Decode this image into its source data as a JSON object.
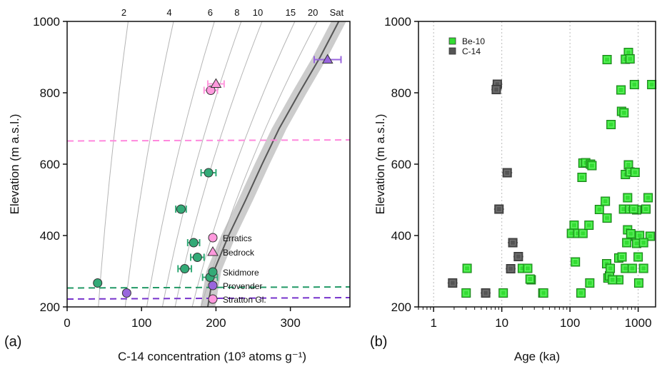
{
  "chart_data": [
    {
      "panel_label": "(a)",
      "type": "scatter",
      "xlabel": "C-14 concentration (10³ atoms g⁻¹)",
      "ylabel": "Elevation (m a.s.l.)",
      "xlim": [
        0,
        380
      ],
      "ylim": [
        200,
        1000
      ],
      "xticks": [
        0,
        100,
        200,
        300
      ],
      "yticks": [
        200,
        400,
        600,
        800,
        1000
      ],
      "isochrons": {
        "labels": [
          "2",
          "4",
          "6",
          "8",
          "10",
          "15",
          "20",
          "Sat"
        ],
        "x_at_200": [
          42,
          78,
          107,
          128,
          145,
          168,
          180,
          190
        ],
        "x_at_1000": [
          82,
          143,
          198,
          234,
          262,
          306,
          336,
          365
        ]
      },
      "saturation_band": {
        "center": [
          [
            189,
            200
          ],
          [
            197,
            300
          ],
          [
            217,
            400
          ],
          [
            240,
            500
          ],
          [
            262,
            600
          ],
          [
            285,
            700
          ],
          [
            312,
            800
          ],
          [
            340,
            900
          ],
          [
            365,
            1000
          ]
        ],
        "half_width": 10
      },
      "reference_lines": [
        {
          "color": "#ff88dd",
          "y": [
            665,
            668
          ]
        },
        {
          "color": "#229966",
          "y": [
            253,
            256
          ]
        },
        {
          "color": "#7733cc",
          "y": [
            222,
            226
          ]
        }
      ],
      "points": [
        {
          "group": "Stratton Gl.",
          "shape": "circle",
          "x": 193,
          "y": 807,
          "xerr": 9
        },
        {
          "group": "Stratton Gl.",
          "shape": "triangle",
          "x": 200,
          "y": 825,
          "xerr": 11
        },
        {
          "group": "Provender",
          "shape": "triangle",
          "x": 350,
          "y": 893,
          "xerr": 18
        },
        {
          "group": "Skidmore",
          "shape": "circle",
          "x": 190,
          "y": 576,
          "xerr": 10
        },
        {
          "group": "Skidmore",
          "shape": "circle",
          "x": 153,
          "y": 474,
          "xerr": 7
        },
        {
          "group": "Skidmore",
          "shape": "circle",
          "x": 170,
          "y": 380,
          "xerr": 8
        },
        {
          "group": "Skidmore",
          "shape": "circle",
          "x": 175,
          "y": 339,
          "xerr": 9
        },
        {
          "group": "Skidmore",
          "shape": "circle",
          "x": 158,
          "y": 307,
          "xerr": 9
        },
        {
          "group": "Skidmore",
          "shape": "circle",
          "x": 192,
          "y": 283,
          "xerr": 10
        },
        {
          "group": "Skidmore",
          "shape": "circle",
          "x": 41,
          "y": 267,
          "xerr": 0
        },
        {
          "group": "Provender",
          "shape": "circle",
          "x": 80,
          "y": 239,
          "xerr": 0
        }
      ],
      "legend": [
        {
          "label": "Erratics",
          "shape": "circle",
          "color": "#ff99dd"
        },
        {
          "label": "Bedrock",
          "shape": "triangle",
          "color": "#ff99dd"
        },
        {
          "label": "Skidmore",
          "shape": "circle",
          "color": "#33aa77"
        },
        {
          "label": "Provender",
          "shape": "circle",
          "color": "#9966dd"
        },
        {
          "label": "Stratton Gl.",
          "shape": "circle",
          "color": "#ff99dd"
        }
      ],
      "colors": {
        "Skidmore": "#33aa77",
        "Provender": "#9966dd",
        "Stratton Gl.": "#ff99dd",
        "isochron": "#b5b5b5",
        "saturation": "#555555"
      }
    },
    {
      "panel_label": "(b)",
      "type": "scatter",
      "xscale": "log",
      "xlabel": "Age (ka)",
      "ylabel": "Elevation (m a.s.l.)",
      "xlim": [
        0.6,
        1800
      ],
      "ylim": [
        200,
        1000
      ],
      "xticks": [
        1,
        10,
        100,
        1000
      ],
      "xtick_labels": [
        "1",
        "10",
        "100",
        "1000"
      ],
      "yticks": [
        200,
        400,
        600,
        800,
        1000
      ],
      "yticklabels": [
        "200",
        "400",
        "600",
        "800",
        "1000"
      ],
      "grid": "vertical dotted at 1, 10, 100, 1000",
      "legend": [
        {
          "label": "Be-10",
          "color": "#33dd33"
        },
        {
          "label": "C-14",
          "color": "#555555"
        }
      ],
      "series": [
        {
          "name": "C-14",
          "color": "#555555",
          "points": [
            [
              8.6,
              824
            ],
            [
              8.3,
              809
            ],
            [
              12,
              576
            ],
            [
              9.1,
              474
            ],
            [
              14.5,
              380
            ],
            [
              17.5,
              341
            ],
            [
              13.5,
              307
            ],
            [
              1.9,
              267
            ],
            [
              5.8,
              239
            ]
          ]
        },
        {
          "name": "Be-10",
          "color": "#33dd33",
          "points": [
            [
              3.1,
              308
            ],
            [
              3,
              239
            ],
            [
              10.5,
              239
            ],
            [
              20,
              308
            ],
            [
              24,
              308
            ],
            [
              27,
              276
            ],
            [
              26,
              278
            ],
            [
              40,
              239
            ],
            [
              41,
              239
            ],
            [
              115,
              429
            ],
            [
              105,
              406
            ],
            [
              130,
              406
            ],
            [
              155,
              406
            ],
            [
              190,
              429
            ],
            [
              120,
              326
            ],
            [
              195,
              267
            ],
            [
              145,
              239
            ],
            [
              155,
              603
            ],
            [
              170,
              604
            ],
            [
              200,
              600
            ],
            [
              210,
              596
            ],
            [
              150,
              563
            ],
            [
              270,
              473
            ],
            [
              330,
              496
            ],
            [
              350,
              449
            ],
            [
              345,
              321
            ],
            [
              360,
              281
            ],
            [
              380,
              287
            ],
            [
              390,
              308
            ],
            [
              400,
              711
            ],
            [
              350,
              893
            ],
            [
              560,
              808
            ],
            [
              570,
              748
            ],
            [
              620,
              744
            ],
            [
              650,
              571
            ],
            [
              720,
              598
            ],
            [
              760,
              578
            ],
            [
              900,
              577
            ],
            [
              700,
              506
            ],
            [
              950,
              472
            ],
            [
              1400,
              506
            ],
            [
              610,
              474
            ],
            [
              750,
              474
            ],
            [
              860,
              474
            ],
            [
              1300,
              474
            ],
            [
              700,
              416
            ],
            [
              820,
              399
            ],
            [
              920,
              398
            ],
            [
              1050,
              400
            ],
            [
              1500,
              398
            ],
            [
              520,
              337
            ],
            [
              580,
              340
            ],
            [
              680,
              380
            ],
            [
              780,
              405
            ],
            [
              950,
              378
            ],
            [
              1200,
              380
            ],
            [
              650,
              308
            ],
            [
              820,
              308
            ],
            [
              1000,
              340
            ],
            [
              1200,
              308
            ],
            [
              520,
              276
            ],
            [
              420,
              276
            ],
            [
              1020,
              267
            ],
            [
              720,
              913
            ],
            [
              650,
              894
            ],
            [
              760,
              895
            ],
            [
              880,
              823
            ],
            [
              1580,
              823
            ]
          ]
        }
      ]
    }
  ]
}
